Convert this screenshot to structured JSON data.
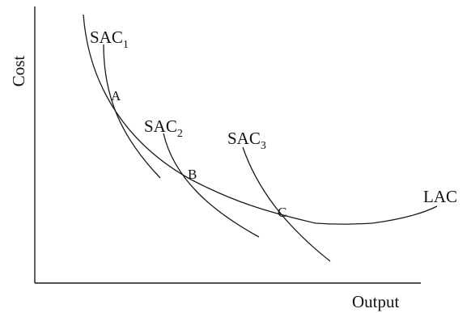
{
  "axes": {
    "y_label": "Cost",
    "x_label": "Output"
  },
  "curves": {
    "sac1": {
      "main": "SAC",
      "sub": "1"
    },
    "sac2": {
      "main": "SAC",
      "sub": "2"
    },
    "sac3": {
      "main": "SAC",
      "sub": "3"
    },
    "lac": {
      "label": "LAC"
    }
  },
  "points": {
    "a": "A",
    "b": "B",
    "c": "C"
  }
}
